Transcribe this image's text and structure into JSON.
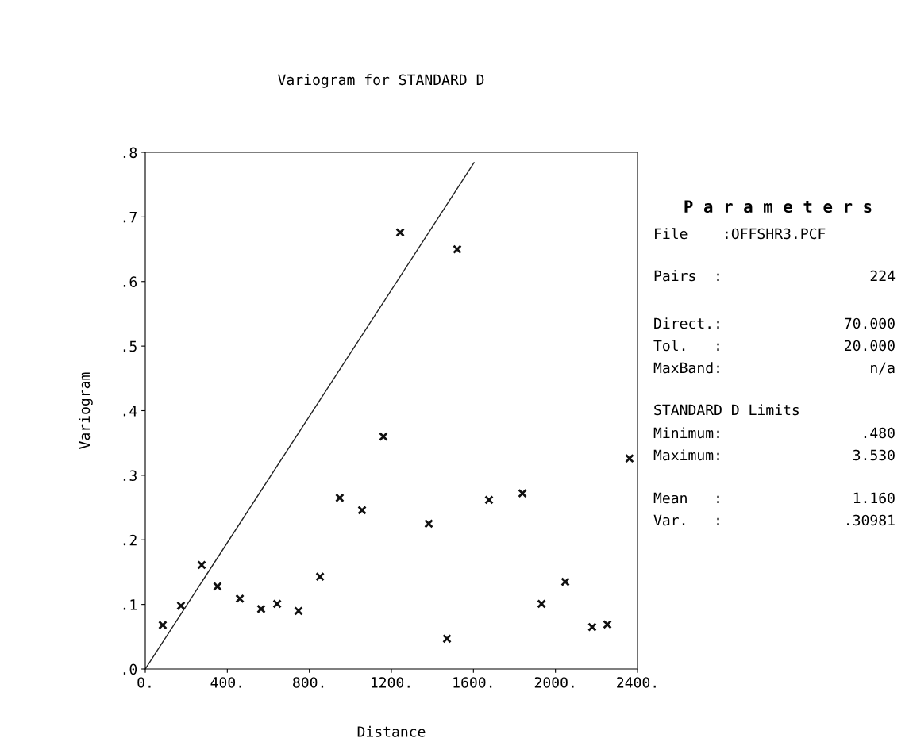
{
  "chart_data": {
    "type": "scatter",
    "title": "Variogram for STANDARD D",
    "xlabel": "Distance",
    "ylabel": "Variogram",
    "xlim": [
      0,
      2400
    ],
    "ylim": [
      0,
      0.8
    ],
    "xticks": [
      {
        "value": 0,
        "label": "0."
      },
      {
        "value": 400,
        "label": "400."
      },
      {
        "value": 800,
        "label": "800."
      },
      {
        "value": 1200,
        "label": "1200."
      },
      {
        "value": 1600,
        "label": "1600."
      },
      {
        "value": 2000,
        "label": "2000."
      },
      {
        "value": 2400,
        "label": "2400."
      }
    ],
    "yticks": [
      {
        "value": 0,
        "label": ".0"
      },
      {
        "value": 0.1,
        "label": ".1"
      },
      {
        "value": 0.2,
        "label": ".2"
      },
      {
        "value": 0.3,
        "label": ".3"
      },
      {
        "value": 0.4,
        "label": ".4"
      },
      {
        "value": 0.5,
        "label": ".5"
      },
      {
        "value": 0.6,
        "label": ".6"
      },
      {
        "value": 0.7,
        "label": ".7"
      },
      {
        "value": 0.8,
        "label": ".8"
      }
    ],
    "grid": false,
    "legend": false,
    "series": [
      {
        "marker": "cross",
        "color": "#111111",
        "x": [
          85,
          174,
          275,
          352,
          461,
          565,
          643,
          747,
          852,
          948,
          1057,
          1161,
          1243,
          1382,
          1471,
          1521,
          1676,
          1839,
          1932,
          2048,
          2179,
          2253,
          2361
        ],
        "values": [
          0.068,
          0.098,
          0.161,
          0.128,
          0.109,
          0.093,
          0.101,
          0.09,
          0.143,
          0.265,
          0.246,
          0.36,
          0.676,
          0.225,
          0.047,
          0.65,
          0.262,
          0.272,
          0.101,
          0.135,
          0.065,
          0.069,
          0.326
        ]
      },
      {
        "type": "line",
        "marker": "none",
        "color": "#222222",
        "line_style": "solid",
        "x": [
          0,
          1603
        ],
        "values": [
          0,
          0.784
        ]
      }
    ],
    "annotations": [
      "P a r a m e t e r s",
      "File    :OFFSHR3.PCF",
      "Pairs  :",
      "224",
      "Direct.:",
      "70.000",
      "Tol.   :",
      "20.000",
      "MaxBand:",
      "n/a",
      "STANDARD D Limits",
      "Minimum:",
      ".480",
      "Maximum:",
      "3.530",
      "Mean   :",
      "1.160",
      "Var.   :",
      ".30981"
    ]
  }
}
